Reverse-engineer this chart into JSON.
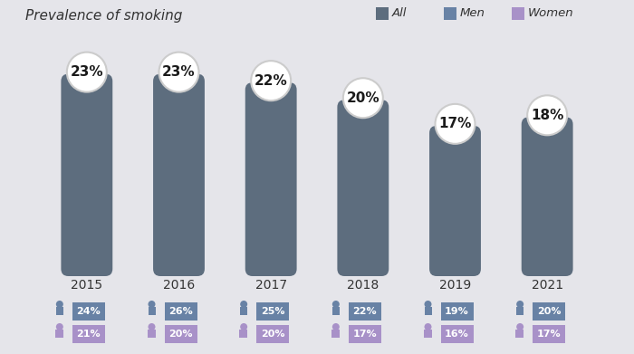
{
  "title": "Prevalence of smoking",
  "background_color": "#e5e5ea",
  "years": [
    "2015",
    "2016",
    "2017",
    "2018",
    "2019",
    "2021"
  ],
  "all_values": [
    23,
    23,
    22,
    20,
    17,
    18
  ],
  "men_values": [
    24,
    26,
    25,
    22,
    19,
    20
  ],
  "women_values": [
    21,
    20,
    20,
    17,
    16,
    17
  ],
  "bar_color": "#5d6d7e",
  "men_color": "#6882a5",
  "women_color": "#a891c8",
  "circle_facecolor": "#ffffff",
  "circle_edgecolor": "#cccccc",
  "legend_items": [
    "All",
    "Men",
    "Women"
  ],
  "legend_colors": [
    "#5d6d7e",
    "#6882a5",
    "#a891c8"
  ],
  "title_fontsize": 11,
  "bar_fontsize": 11,
  "year_fontsize": 10,
  "pct_fontsize": 8
}
